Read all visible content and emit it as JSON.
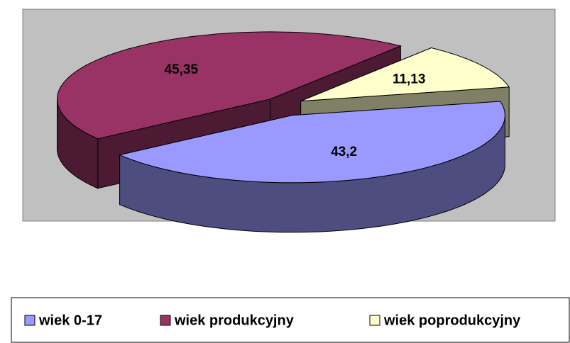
{
  "chart_data": {
    "type": "pie",
    "three_d": true,
    "exploded": true,
    "categories": [
      "wiek 0-17",
      "wiek produkcyjny",
      "wiek poprodukcyjny"
    ],
    "values": [
      43.2,
      45.35,
      11.13
    ],
    "value_labels": [
      "43,2",
      "45,35",
      "11,13"
    ],
    "colors": [
      "#9999ff",
      "#993366",
      "#ffffcc"
    ],
    "legend": "bottom"
  }
}
